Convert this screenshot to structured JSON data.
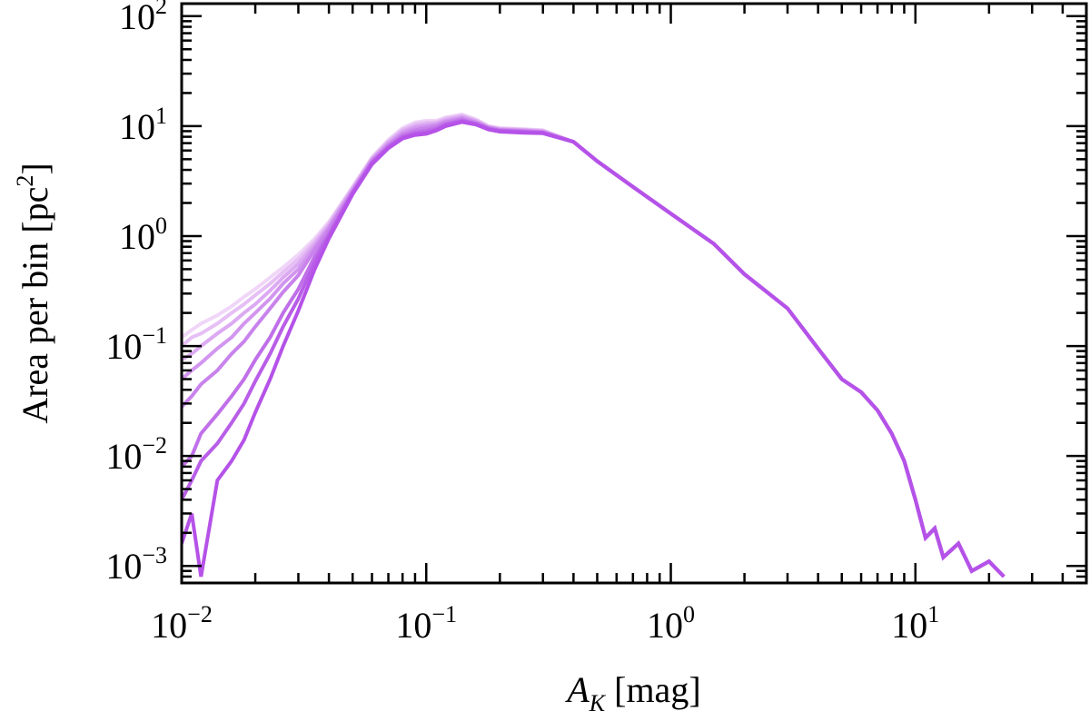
{
  "chart_data": {
    "type": "line",
    "title": "",
    "xlabel": {
      "var": "A",
      "sub": "K",
      "unit": " [mag]"
    },
    "ylabel": {
      "text": "Area per bin [pc",
      "sup": "2",
      "close": "]"
    },
    "x_scale": "log",
    "y_scale": "log",
    "xlim": [
      0.01,
      50
    ],
    "ylim": [
      0.0007,
      130
    ],
    "x_ticks": [
      {
        "value": 0.01,
        "base": "10",
        "exp": "−2"
      },
      {
        "value": 0.1,
        "base": "10",
        "exp": "−1"
      },
      {
        "value": 1,
        "base": "10",
        "exp": "0"
      },
      {
        "value": 10,
        "base": "10",
        "exp": "1"
      }
    ],
    "y_ticks": [
      {
        "value": 0.001,
        "base": "10",
        "exp": "−3"
      },
      {
        "value": 0.01,
        "base": "10",
        "exp": "−2"
      },
      {
        "value": 0.1,
        "base": "10",
        "exp": "−1"
      },
      {
        "value": 1,
        "base": "10",
        "exp": "0"
      },
      {
        "value": 10,
        "base": "10",
        "exp": "1"
      },
      {
        "value": 100,
        "base": "10",
        "exp": "2"
      }
    ],
    "grid": false,
    "legend": "none",
    "series_colors": [
      "#f0d6f8",
      "#e6bff5",
      "#dcaaf2",
      "#d296ef",
      "#c983ec",
      "#c070e9",
      "#b95ee8",
      "#b552e8"
    ],
    "series": [
      {
        "x": [
          0.01,
          0.011,
          0.012,
          0.014,
          0.016,
          0.018,
          0.02,
          0.023,
          0.026,
          0.03,
          0.035,
          0.04,
          0.05,
          0.06,
          0.07,
          0.08,
          0.09,
          0.1,
          0.11,
          0.12,
          0.14,
          0.16,
          0.18,
          0.2,
          0.25,
          0.3,
          0.4,
          0.5,
          0.7,
          1,
          1.5,
          2,
          3,
          4,
          5,
          6,
          7,
          8,
          9,
          10,
          11,
          12,
          13,
          15,
          17,
          20,
          23
        ],
        "y": [
          0.12,
          0.14,
          0.16,
          0.19,
          0.23,
          0.28,
          0.33,
          0.42,
          0.52,
          0.68,
          0.95,
          1.35,
          2.8,
          5.2,
          7.5,
          9.6,
          10.8,
          11.2,
          11.2,
          12,
          12.8,
          11.5,
          10,
          9.6,
          9.4,
          9.2,
          7.2,
          4.8,
          2.8,
          1.6,
          0.85,
          0.45,
          0.22,
          0.095,
          0.05,
          0.038,
          0.026,
          0.016,
          0.009,
          0.004,
          0.0018,
          0.0022,
          0.0012,
          0.0016,
          0.0009,
          0.0011,
          0.0008
        ]
      },
      {
        "x": [
          0.01,
          0.011,
          0.012,
          0.014,
          0.016,
          0.018,
          0.02,
          0.023,
          0.026,
          0.03,
          0.035,
          0.04,
          0.05,
          0.06,
          0.07,
          0.08,
          0.09,
          0.1,
          0.11,
          0.12,
          0.14,
          0.16,
          0.18,
          0.2,
          0.25,
          0.3,
          0.4,
          0.5,
          0.7,
          1,
          1.5,
          2,
          3,
          4,
          5,
          6,
          7,
          8,
          9,
          10,
          11,
          12,
          13,
          15,
          17,
          20,
          23
        ],
        "y": [
          0.1,
          0.12,
          0.13,
          0.16,
          0.2,
          0.24,
          0.29,
          0.37,
          0.47,
          0.62,
          0.9,
          1.3,
          2.75,
          5.1,
          7.3,
          9.3,
          10.4,
          10.8,
          10.9,
          11.7,
          12.5,
          11.3,
          9.9,
          9.5,
          9.3,
          9.1,
          7.2,
          4.8,
          2.8,
          1.6,
          0.85,
          0.45,
          0.22,
          0.095,
          0.05,
          0.038,
          0.026,
          0.016,
          0.009,
          0.004,
          0.0018,
          0.0022,
          0.0012,
          0.0016,
          0.0009,
          0.0011,
          0.0008
        ]
      },
      {
        "x": [
          0.01,
          0.011,
          0.012,
          0.014,
          0.016,
          0.018,
          0.02,
          0.023,
          0.026,
          0.03,
          0.035,
          0.04,
          0.05,
          0.06,
          0.07,
          0.08,
          0.09,
          0.1,
          0.11,
          0.12,
          0.14,
          0.16,
          0.18,
          0.2,
          0.25,
          0.3,
          0.4,
          0.5,
          0.7,
          1,
          1.5,
          2,
          3,
          4,
          5,
          6,
          7,
          8,
          9,
          10,
          11,
          12,
          13,
          15,
          17,
          20,
          23
        ],
        "y": [
          0.075,
          0.085,
          0.1,
          0.13,
          0.16,
          0.2,
          0.24,
          0.32,
          0.42,
          0.56,
          0.85,
          1.25,
          2.7,
          5,
          7.1,
          9,
          10,
          10.4,
          10.6,
          11.4,
          12.2,
          11.1,
          9.8,
          9.4,
          9.2,
          9,
          7.2,
          4.8,
          2.8,
          1.6,
          0.85,
          0.45,
          0.22,
          0.095,
          0.05,
          0.038,
          0.026,
          0.016,
          0.009,
          0.004,
          0.0018,
          0.0022,
          0.0012,
          0.0016,
          0.0009,
          0.0011,
          0.0008
        ]
      },
      {
        "x": [
          0.01,
          0.011,
          0.012,
          0.014,
          0.016,
          0.018,
          0.02,
          0.023,
          0.026,
          0.03,
          0.035,
          0.04,
          0.05,
          0.06,
          0.07,
          0.08,
          0.09,
          0.1,
          0.11,
          0.12,
          0.14,
          0.16,
          0.18,
          0.2,
          0.25,
          0.3,
          0.4,
          0.5,
          0.7,
          1,
          1.5,
          2,
          3,
          4,
          5,
          6,
          7,
          8,
          9,
          10,
          11,
          12,
          13,
          15,
          17,
          20,
          23
        ],
        "y": [
          0.05,
          0.06,
          0.07,
          0.095,
          0.12,
          0.16,
          0.2,
          0.27,
          0.37,
          0.5,
          0.8,
          1.2,
          2.6,
          4.9,
          6.9,
          8.7,
          9.6,
          10,
          10.3,
          11.1,
          11.9,
          10.9,
          9.7,
          9.3,
          9.1,
          8.9,
          7.2,
          4.8,
          2.8,
          1.6,
          0.85,
          0.45,
          0.22,
          0.095,
          0.05,
          0.038,
          0.026,
          0.016,
          0.009,
          0.004,
          0.0018,
          0.0022,
          0.0012,
          0.0016,
          0.0009,
          0.0011,
          0.0008
        ]
      },
      {
        "x": [
          0.01,
          0.011,
          0.012,
          0.014,
          0.016,
          0.018,
          0.02,
          0.023,
          0.026,
          0.03,
          0.035,
          0.04,
          0.05,
          0.06,
          0.07,
          0.08,
          0.09,
          0.1,
          0.11,
          0.12,
          0.14,
          0.16,
          0.18,
          0.2,
          0.25,
          0.3,
          0.4,
          0.5,
          0.7,
          1,
          1.5,
          2,
          3,
          4,
          5,
          6,
          7,
          8,
          9,
          10,
          11,
          12,
          13,
          15,
          17,
          20,
          23
        ],
        "y": [
          0.028,
          0.035,
          0.045,
          0.06,
          0.085,
          0.11,
          0.15,
          0.22,
          0.31,
          0.44,
          0.75,
          1.15,
          2.55,
          4.8,
          6.7,
          8.4,
          9.2,
          9.6,
          10,
          10.8,
          11.6,
          10.7,
          9.6,
          9.2,
          9,
          8.8,
          7.2,
          4.8,
          2.8,
          1.6,
          0.85,
          0.45,
          0.22,
          0.095,
          0.05,
          0.038,
          0.026,
          0.016,
          0.009,
          0.004,
          0.0018,
          0.0022,
          0.0012,
          0.0016,
          0.0009,
          0.0011,
          0.0008
        ]
      },
      {
        "x": [
          0.01,
          0.011,
          0.012,
          0.014,
          0.016,
          0.018,
          0.02,
          0.023,
          0.026,
          0.03,
          0.035,
          0.04,
          0.05,
          0.06,
          0.07,
          0.08,
          0.09,
          0.1,
          0.11,
          0.12,
          0.14,
          0.16,
          0.18,
          0.2,
          0.25,
          0.3,
          0.4,
          0.5,
          0.7,
          1,
          1.5,
          2,
          3,
          4,
          5,
          6,
          7,
          8,
          9,
          10,
          11,
          12,
          13,
          15,
          17,
          20,
          23
        ],
        "y": [
          0.008,
          0.01,
          0.016,
          0.024,
          0.035,
          0.05,
          0.075,
          0.12,
          0.2,
          0.33,
          0.65,
          1.05,
          2.5,
          4.7,
          6.5,
          8.1,
          8.8,
          9.1,
          9.6,
          10.5,
          11.3,
          10.5,
          9.5,
          9.1,
          8.9,
          8.7,
          7.2,
          4.8,
          2.8,
          1.6,
          0.85,
          0.45,
          0.22,
          0.095,
          0.05,
          0.038,
          0.026,
          0.016,
          0.009,
          0.004,
          0.0018,
          0.0022,
          0.0012,
          0.0016,
          0.0009,
          0.0011,
          0.0008
        ]
      },
      {
        "x": [
          0.01,
          0.011,
          0.012,
          0.014,
          0.016,
          0.018,
          0.02,
          0.023,
          0.026,
          0.03,
          0.035,
          0.04,
          0.05,
          0.06,
          0.07,
          0.08,
          0.09,
          0.1,
          0.11,
          0.12,
          0.14,
          0.16,
          0.18,
          0.2,
          0.25,
          0.3,
          0.4,
          0.5,
          0.7,
          1,
          1.5,
          2,
          3,
          4,
          5,
          6,
          7,
          8,
          9,
          10,
          11,
          12,
          13,
          15,
          17,
          20,
          23
        ],
        "y": [
          0.004,
          0.006,
          0.009,
          0.013,
          0.02,
          0.03,
          0.048,
          0.085,
          0.15,
          0.27,
          0.58,
          1,
          2.45,
          4.6,
          6.4,
          7.9,
          8.5,
          8.7,
          9.3,
          10.2,
          11.1,
          10.4,
          9.4,
          9,
          8.8,
          8.7,
          7.2,
          4.8,
          2.8,
          1.6,
          0.85,
          0.45,
          0.22,
          0.095,
          0.05,
          0.038,
          0.026,
          0.016,
          0.009,
          0.004,
          0.0018,
          0.0022,
          0.0012,
          0.0016,
          0.0009,
          0.0011,
          0.0008
        ]
      },
      {
        "x": [
          0.01,
          0.011,
          0.012,
          0.014,
          0.016,
          0.018,
          0.02,
          0.023,
          0.026,
          0.03,
          0.035,
          0.04,
          0.05,
          0.06,
          0.07,
          0.08,
          0.09,
          0.1,
          0.11,
          0.12,
          0.14,
          0.16,
          0.18,
          0.2,
          0.25,
          0.3,
          0.4,
          0.5,
          0.7,
          1,
          1.5,
          2,
          3,
          4,
          5,
          6,
          7,
          8,
          9,
          10,
          11,
          12,
          13,
          15,
          17,
          20,
          23
        ],
        "y": [
          0.0016,
          0.003,
          0.0008,
          0.006,
          0.009,
          0.014,
          0.025,
          0.05,
          0.1,
          0.21,
          0.5,
          0.95,
          2.4,
          4.5,
          6.3,
          7.7,
          8.3,
          8.5,
          9.1,
          10,
          10.9,
          10.3,
          9.3,
          8.9,
          8.7,
          8.6,
          7.2,
          4.8,
          2.8,
          1.6,
          0.85,
          0.45,
          0.22,
          0.095,
          0.05,
          0.038,
          0.026,
          0.016,
          0.009,
          0.004,
          0.0018,
          0.0022,
          0.0012,
          0.0016,
          0.0009,
          0.0011,
          0.0008
        ]
      }
    ]
  }
}
